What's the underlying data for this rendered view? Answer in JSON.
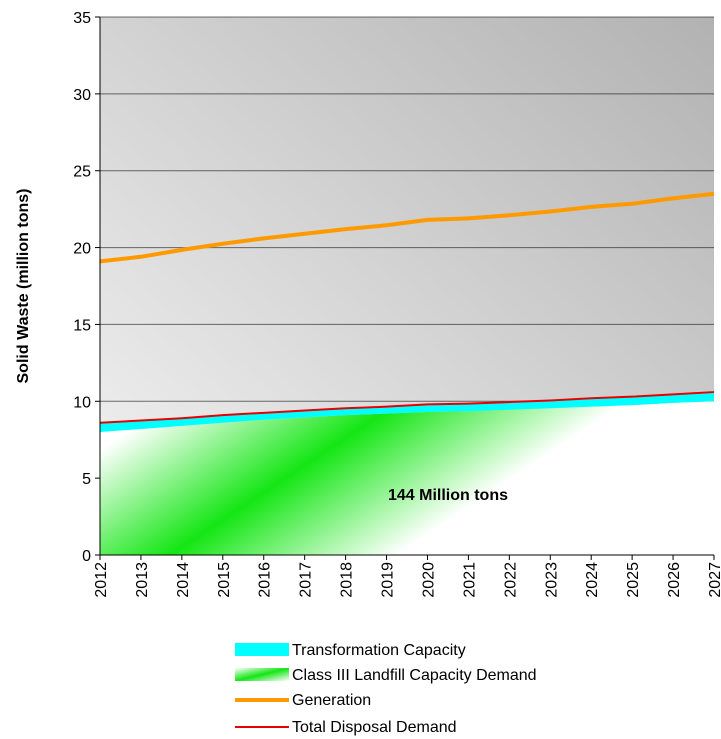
{
  "chart_data": {
    "type": "area",
    "title": "",
    "xlabel": "",
    "ylabel": "Solid Waste (million tons)",
    "x": [
      "2012",
      "2013",
      "2014",
      "2015",
      "2016",
      "2017",
      "2018",
      "2019",
      "2020",
      "2021",
      "2022",
      "2023",
      "2024",
      "2025",
      "2026",
      "2027"
    ],
    "ylim": [
      0,
      35
    ],
    "yticks": [
      0,
      5,
      10,
      15,
      20,
      25,
      30,
      35
    ],
    "grid": true,
    "legend_position": "bottom",
    "series": [
      {
        "name": "Transformation Capacity",
        "kind": "band",
        "color": "#00ffff",
        "lower": [
          8.0,
          8.2,
          8.4,
          8.6,
          8.8,
          8.95,
          9.1,
          9.2,
          9.3,
          9.35,
          9.45,
          9.55,
          9.65,
          9.75,
          9.9,
          10.0
        ],
        "upper": [
          8.6,
          8.75,
          8.9,
          9.1,
          9.25,
          9.4,
          9.55,
          9.65,
          9.8,
          9.85,
          9.95,
          10.05,
          10.2,
          10.3,
          10.45,
          10.6
        ]
      },
      {
        "name": "Class III Landfill Capacity Demand",
        "kind": "area",
        "color": "#00cc00",
        "values": [
          8.0,
          8.2,
          8.4,
          8.6,
          8.8,
          8.95,
          9.1,
          9.2,
          9.3,
          9.35,
          9.45,
          9.55,
          9.65,
          9.75,
          9.9,
          10.0
        ]
      },
      {
        "name": "Generation",
        "kind": "line",
        "color": "#ff9900",
        "values": [
          19.1,
          19.4,
          19.85,
          20.25,
          20.6,
          20.9,
          21.2,
          21.45,
          21.8,
          21.9,
          22.1,
          22.35,
          22.65,
          22.85,
          23.2,
          23.5
        ]
      },
      {
        "name": "Total Disposal Demand",
        "kind": "line",
        "color": "#e60000",
        "values": [
          8.6,
          8.75,
          8.9,
          9.1,
          9.25,
          9.4,
          9.55,
          9.65,
          9.8,
          9.85,
          9.95,
          10.05,
          10.2,
          10.3,
          10.45,
          10.6
        ]
      }
    ],
    "annotations": [
      {
        "text": "144 Million tons",
        "x": "2020",
        "y": 4.6
      }
    ]
  },
  "colors": {
    "plot_bg_light": "#f2f2f2",
    "plot_bg_dark": "#b4b4b4",
    "gridline": "#000000"
  }
}
